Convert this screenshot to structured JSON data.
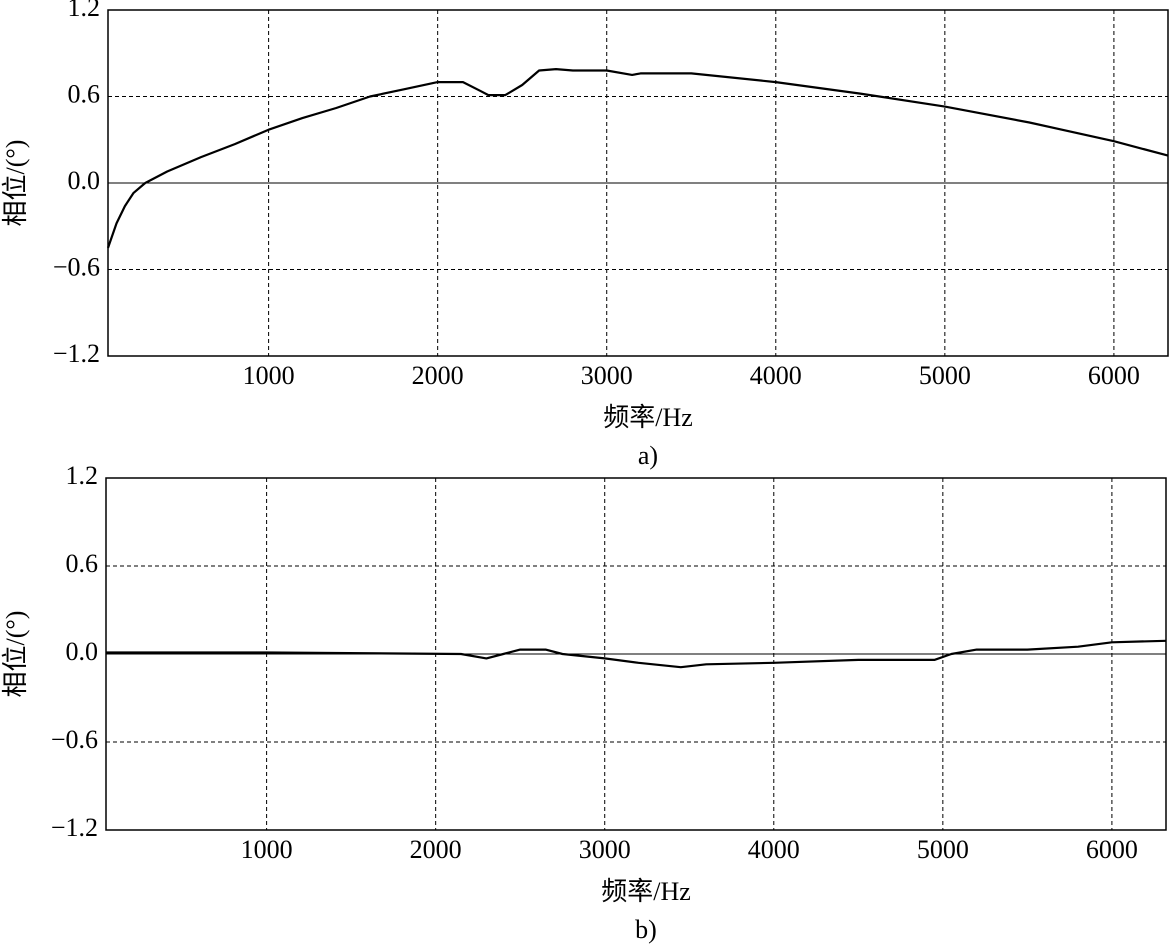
{
  "chart_data": [
    {
      "type": "line",
      "caption": "a)",
      "xlabel": "频率/Hz",
      "ylabel": "相位/(°)",
      "x": [
        50,
        100,
        150,
        200,
        270,
        400,
        600,
        800,
        1000,
        1200,
        1400,
        1600,
        1800,
        2000,
        2150,
        2250,
        2300,
        2400,
        2500,
        2600,
        2700,
        2800,
        3000,
        3150,
        3200,
        3500,
        4000,
        4500,
        5000,
        5500,
        6000,
        6320
      ],
      "series": [
        {
          "color": "#000000",
          "values": [
            -0.45,
            -0.28,
            -0.16,
            -0.07,
            0.0,
            0.08,
            0.18,
            0.27,
            0.37,
            0.45,
            0.52,
            0.6,
            0.65,
            0.7,
            0.7,
            0.64,
            0.61,
            0.61,
            0.68,
            0.78,
            0.79,
            0.78,
            0.78,
            0.75,
            0.76,
            0.76,
            0.7,
            0.62,
            0.53,
            0.42,
            0.29,
            0.19
          ]
        }
      ],
      "xlim": [
        50,
        6320
      ],
      "ylim": [
        -1.2,
        1.2
      ],
      "xticks": [
        1000,
        2000,
        3000,
        4000,
        5000,
        6000
      ],
      "yticks": [
        {
          "value": -1.2,
          "label": "−1.2"
        },
        {
          "value": -0.6,
          "label": "−0.6"
        },
        {
          "value": 0,
          "label": "0.0"
        },
        0.6,
        1.2
      ],
      "grid": true,
      "zero_line": true
    },
    {
      "type": "line",
      "caption": "b)",
      "xlabel": "频率/Hz",
      "ylabel": "相位/(°)",
      "x": [
        50,
        1000,
        2150,
        2300,
        2400,
        2500,
        2650,
        2750,
        3000,
        3200,
        3450,
        3600,
        4000,
        4500,
        4950,
        5050,
        5200,
        5500,
        5800,
        6000,
        6320
      ],
      "series": [
        {
          "color": "#000000",
          "values": [
            0.01,
            0.01,
            0.0,
            -0.03,
            0.0,
            0.03,
            0.03,
            0.0,
            -0.03,
            -0.06,
            -0.09,
            -0.07,
            -0.06,
            -0.04,
            -0.04,
            0.0,
            0.03,
            0.03,
            0.05,
            0.08,
            0.09
          ]
        }
      ],
      "xlim": [
        50,
        6320
      ],
      "ylim": [
        -1.2,
        1.2
      ],
      "xticks": [
        1000,
        2000,
        3000,
        4000,
        5000,
        6000
      ],
      "yticks": [
        {
          "value": -1.2,
          "label": "−1.2"
        },
        {
          "value": -0.6,
          "label": "−0.6"
        },
        {
          "value": 0,
          "label": "0.0"
        },
        0.6,
        1.2
      ],
      "grid": true,
      "zero_line": true
    }
  ]
}
